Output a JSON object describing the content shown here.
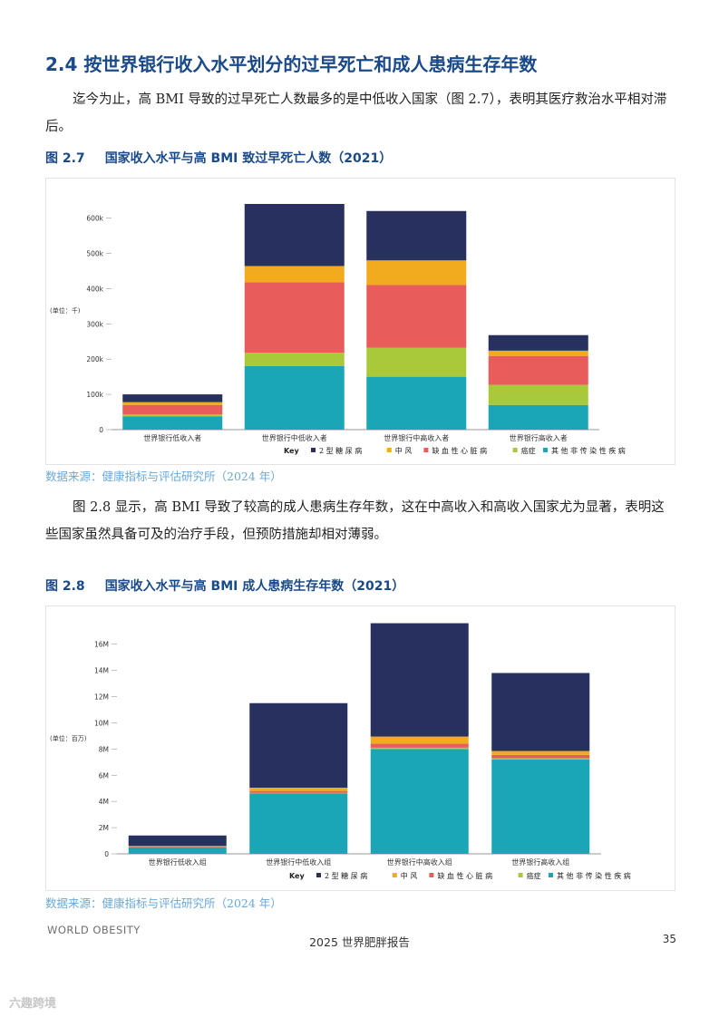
{
  "section": {
    "title": "2.4  按世界银行收入水平划分的过早死亡和成人患病生存年数",
    "paragraph1": "迄今为止，高 BMI 导致的过早死亡人数最多的是中低收入国家（图 2.7），表明其医疗救治水平相对滞后。",
    "paragraph2": "图 2.8 显示，高 BMI 导致了较高的成人患病生存年数，这在中高收入和高收入国家尤为显著，表明这些国家虽然具备可及的治疗手段，但预防措施却相对薄弱。"
  },
  "figure1": {
    "number": "图 2.7",
    "caption": "国家收入水平与高 BMI 致过早死亡人数（2021）",
    "source": "数据来源：健康指标与评估研究所（2024 年）"
  },
  "figure2": {
    "number": "图 2.8",
    "caption": "国家收入水平与高 BMI 成人患病生存年数（2021）",
    "source": "数据来源：健康指标与评估研究所（2024 年）"
  },
  "footer": {
    "logo": "WORLD OBESITY",
    "report": "2025 世界肥胖报告",
    "page": "35",
    "watermark": "六趣跨境"
  },
  "chart_data": [
    {
      "type": "bar",
      "stacked": true,
      "unit_label": "(单位：千)",
      "categories": [
        "世界银行低收入者",
        "世界银行中低收入者",
        "世界银行中高收入者",
        "世界银行高收入者"
      ],
      "yticks": [
        "0",
        "100k",
        "200k",
        "300k",
        "400k",
        "500k",
        "600k"
      ],
      "ylim": [
        0,
        640
      ],
      "legend_key": "Key",
      "series": [
        {
          "name": "其 他 非 传 染 性 疾 病",
          "color": "#1aa6b7",
          "values": [
            38,
            180,
            150,
            70
          ]
        },
        {
          "name": "癌症",
          "color": "#a9c93a",
          "values": [
            5,
            38,
            82,
            57
          ]
        },
        {
          "name": "缺 血 性 心 脏 病",
          "color": "#e85c5c",
          "values": [
            27,
            200,
            178,
            82
          ]
        },
        {
          "name": "中 风",
          "color": "#f2ab1f",
          "values": [
            8,
            46,
            70,
            15
          ]
        },
        {
          "name": "2 型 糖 尿 病",
          "color": "#27305f",
          "values": [
            22,
            176,
            140,
            44
          ]
        }
      ],
      "legend_order": [
        4,
        3,
        2,
        1,
        0
      ]
    },
    {
      "type": "bar",
      "stacked": true,
      "unit_label": "(单位：百万)",
      "categories": [
        "世界银行低收入组",
        "世界银行中低收入组",
        "世界银行中高收入组",
        "世界银行高收入组"
      ],
      "yticks": [
        "0",
        "2M",
        "4M",
        "6M",
        "8M",
        "10M",
        "12M",
        "14M",
        "16M"
      ],
      "ylim": [
        0,
        17.5
      ],
      "legend_key": "Key",
      "series": [
        {
          "name": "其 他 非 传 染 性 疾 病",
          "color": "#1aa6b7",
          "values": [
            0.5,
            4.6,
            8.0,
            7.2
          ]
        },
        {
          "name": "癌症",
          "color": "#a9c93a",
          "values": [
            0.02,
            0.05,
            0.1,
            0.1
          ]
        },
        {
          "name": "缺 血 性 心 脏 病",
          "color": "#e85c5c",
          "values": [
            0.05,
            0.15,
            0.3,
            0.25
          ]
        },
        {
          "name": "中 风",
          "color": "#f2ab1f",
          "values": [
            0.03,
            0.25,
            0.55,
            0.3
          ]
        },
        {
          "name": "2 型 糖 尿 病",
          "color": "#27305f",
          "values": [
            0.8,
            6.45,
            8.65,
            5.95
          ]
        }
      ],
      "legend_order": [
        4,
        3,
        2,
        1,
        0
      ]
    }
  ]
}
